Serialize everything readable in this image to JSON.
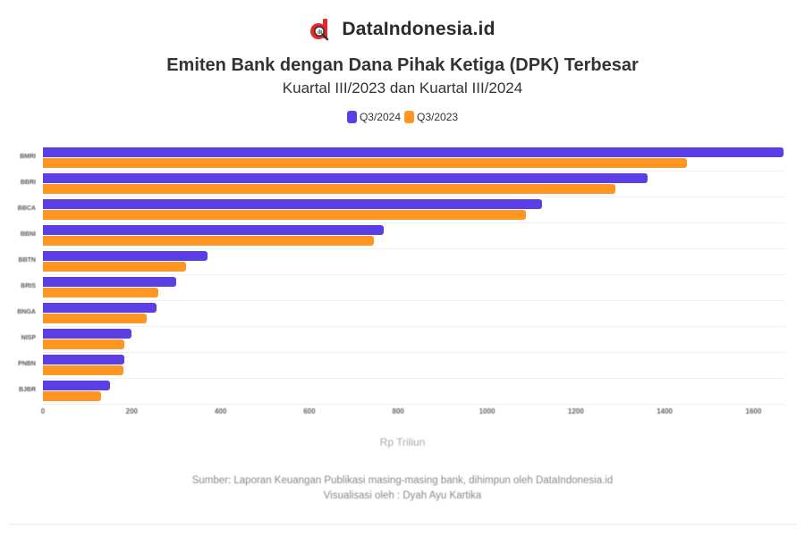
{
  "brand": {
    "name": "DataIndonesia.id",
    "logo_icon": "data-indonesia-logo-icon"
  },
  "header": {
    "title": "Emiten Bank dengan Dana Pihak Ketiga (DPK) Terbesar",
    "subtitle": "Kuartal III/2023 dan Kuartal III/2024"
  },
  "legend": [
    {
      "label": "Q3/2024",
      "color": "#5b3fe4"
    },
    {
      "label": "Q3/2023",
      "color": "#ff9621"
    }
  ],
  "chart_data": {
    "type": "bar",
    "orientation": "horizontal",
    "title": "Emiten Bank dengan Dana Pihak Ketiga (DPK) Terbesar",
    "subtitle": "Kuartal III/2023 dan Kuartal III/2024",
    "categories": [
      "BMRI",
      "BBRI",
      "BBCA",
      "BBNI",
      "BBTN",
      "BRIS",
      "BNGA",
      "NISP",
      "PNBN",
      "BJBR"
    ],
    "series": [
      {
        "name": "Q3/2024",
        "color": "#5b3fe4",
        "values": [
          1668,
          1362,
          1124,
          767,
          371,
          300,
          256,
          199,
          183,
          151
        ]
      },
      {
        "name": "Q3/2023",
        "color": "#ff9621",
        "values": [
          1450,
          1289,
          1088,
          745,
          322,
          260,
          234,
          183,
          181,
          131
        ]
      }
    ],
    "xlabel": "Rp Triliun",
    "ylabel": "",
    "xlim": [
      0,
      1670
    ],
    "x_ticks": [
      "0",
      "200",
      "400",
      "600",
      "800",
      "1000",
      "1200",
      "1400",
      "1600"
    ],
    "grid": true,
    "legend_position": "top"
  },
  "footer": {
    "source": "Sumber: Laporan Keuangan Publikasi masing-masing bank, dihimpun oleh DataIndonesia.id",
    "credit": "Visualisasi oleh : Dyah Ayu Kartika"
  }
}
